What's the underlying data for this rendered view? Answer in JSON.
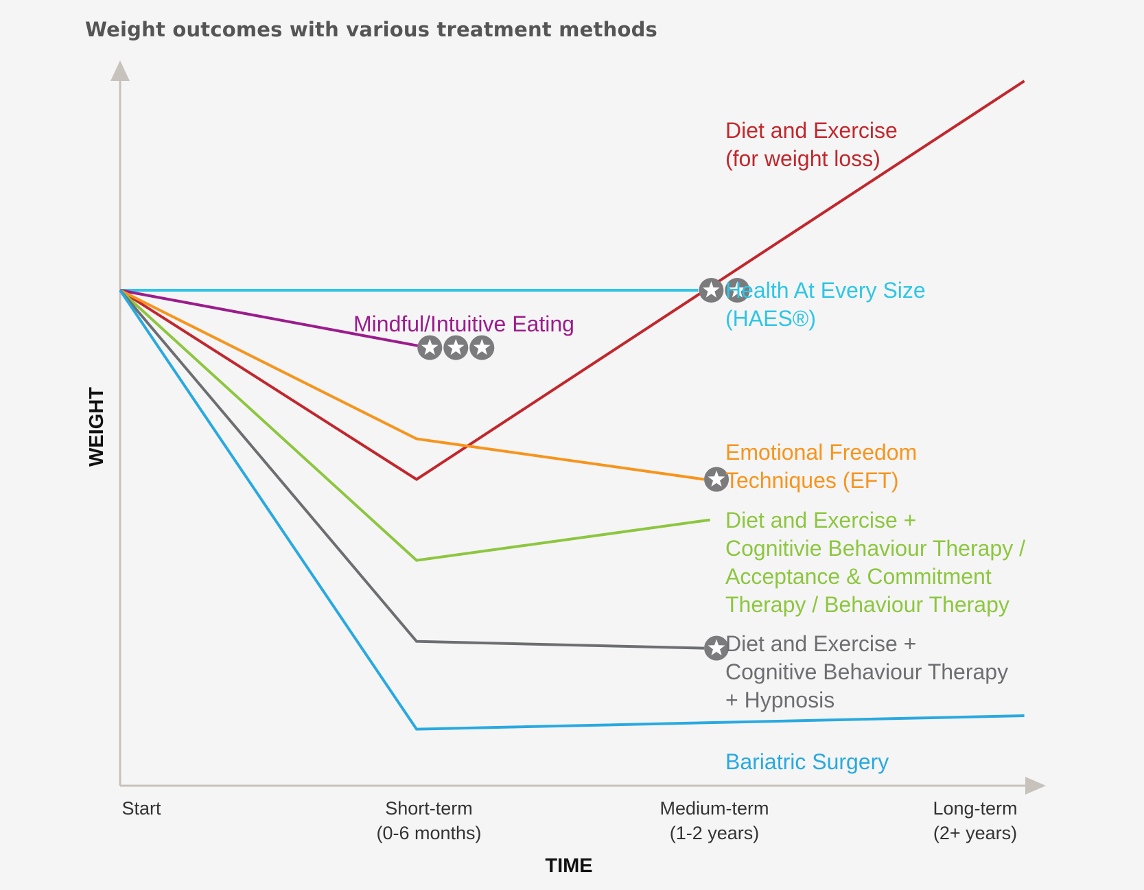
{
  "chart_data": {
    "type": "line",
    "title": "Weight outcomes with various treatment methods",
    "xlabel": "TIME",
    "ylabel": "WEIGHT",
    "x_ticks": [
      {
        "lines": [
          "Start"
        ]
      },
      {
        "lines": [
          "Short-term",
          "(0-6 months)"
        ]
      },
      {
        "lines": [
          "Medium-term",
          "(1-2 years)"
        ]
      },
      {
        "lines": [
          "Long-term",
          "(2+ years)"
        ]
      }
    ],
    "ylim": [
      0,
      100
    ],
    "grid": false,
    "series": [
      {
        "name": "Diet and Exercise (for weight loss)",
        "label_lines": [
          "Diet and Exercise",
          "(for weight loss)"
        ],
        "color": "#c1272d",
        "x": [
          0,
          1,
          3.05
        ],
        "y": [
          69,
          41,
          100
        ],
        "stars": 0
      },
      {
        "name": "Health At Every Size (HAES®)",
        "label_lines": [
          "Health At Every Size",
          "(HAES®)"
        ],
        "color": "#2ec5e6",
        "x": [
          0,
          1.95
        ],
        "y": [
          69,
          69
        ],
        "stars": 2
      },
      {
        "name": "Mindful/Intuitive Eating",
        "label_lines": [
          "Mindful/Intuitive Eating"
        ],
        "color": "#9b1c8c",
        "x": [
          0,
          1.04
        ],
        "y": [
          69,
          60.5
        ],
        "stars": 3
      },
      {
        "name": "Emotional Freedom Techniques (EFT)",
        "label_lines": [
          "Emotional Freedom",
          "Techniques (EFT)"
        ],
        "color": "#f7941d",
        "x": [
          0,
          1,
          1.97
        ],
        "y": [
          69,
          47,
          41
        ],
        "stars": 1
      },
      {
        "name": "Diet and Exercise + Cognitivie Behaviour Therapy / Acceptance & Commitment Therapy / Behaviour Therapy",
        "label_lines": [
          "Diet and Exercise +",
          "Cognitivie Behaviour Therapy /",
          "Acceptance & Commitment",
          "Therapy / Behaviour Therapy"
        ],
        "color": "#8dc63f",
        "x": [
          0,
          1,
          1.99
        ],
        "y": [
          69,
          29,
          35
        ],
        "stars": 0
      },
      {
        "name": "Diet and Exercise + Cognitive Behaviour Therapy + Hypnosis",
        "label_lines": [
          "Diet and Exercise +",
          "Cognitive Behaviour Therapy",
          "+ Hypnosis"
        ],
        "color": "#6d6e71",
        "x": [
          0,
          1,
          1.97
        ],
        "y": [
          69,
          17,
          16
        ],
        "stars": 1
      },
      {
        "name": "Bariatric Surgery",
        "label_lines": [
          "Bariatric Surgery"
        ],
        "color": "#29a9e0",
        "x": [
          0,
          1,
          3.05
        ],
        "y": [
          69,
          4,
          6
        ],
        "stars": 0
      }
    ]
  }
}
